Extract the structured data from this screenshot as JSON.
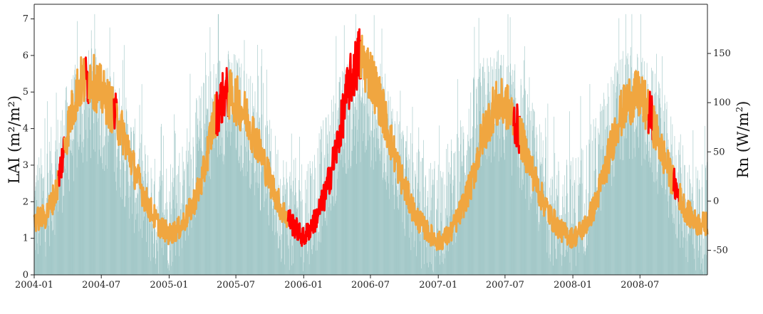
{
  "chart_data": {
    "type": "line",
    "title": "",
    "xlabel": "",
    "ylabel_left": "LAI (m²/m²)",
    "ylabel_right": {
      "main": "Rn (W/m",
      "sup": "2",
      "close": ")"
    },
    "x_range": [
      "2004-01-01",
      "2008-12-31"
    ],
    "x_ticks": [
      "2004-01",
      "2004-07",
      "2005-01",
      "2005-07",
      "2006-01",
      "2006-07",
      "2007-01",
      "2007-07",
      "2008-01",
      "2008-07"
    ],
    "y_left_range": [
      0,
      7.4
    ],
    "y_left_ticks": [
      "0",
      "1",
      "2",
      "3",
      "4",
      "5",
      "6",
      "7"
    ],
    "y_right_range": [
      -75,
      200
    ],
    "y_right_ticks": [
      "-50",
      "0",
      "50",
      "100",
      "150"
    ],
    "grid": false,
    "colors": {
      "lai_normal": "#f0a640",
      "lai_highlight": "#ff0000",
      "rn_bars": "#8fbcbc"
    },
    "series": [
      {
        "kind": "LAI",
        "axis": "left",
        "description": "daily LAI, monthly anchor values (start of month)",
        "x": [
          "2004-01",
          "2004-02",
          "2004-03",
          "2004-04",
          "2004-05",
          "2004-06",
          "2004-07",
          "2004-08",
          "2004-09",
          "2004-10",
          "2004-11",
          "2004-12",
          "2005-01",
          "2005-02",
          "2005-03",
          "2005-04",
          "2005-05",
          "2005-06",
          "2005-07",
          "2005-08",
          "2005-09",
          "2005-10",
          "2005-11",
          "2005-12",
          "2006-01",
          "2006-02",
          "2006-03",
          "2006-04",
          "2006-05",
          "2006-06",
          "2006-07",
          "2006-08",
          "2006-09",
          "2006-10",
          "2006-11",
          "2006-12",
          "2007-01",
          "2007-02",
          "2007-03",
          "2007-04",
          "2007-05",
          "2007-06",
          "2007-07",
          "2007-08",
          "2007-09",
          "2007-10",
          "2007-11",
          "2007-12",
          "2008-01",
          "2008-02",
          "2008-03",
          "2008-04",
          "2008-05",
          "2008-06",
          "2008-07",
          "2008-08",
          "2008-09",
          "2008-10",
          "2008-11",
          "2008-12"
        ],
        "y": [
          1.5,
          1.6,
          2.3,
          4.0,
          5.2,
          5.4,
          5.0,
          4.5,
          3.8,
          2.8,
          2.0,
          1.4,
          1.1,
          1.3,
          1.8,
          2.6,
          4.2,
          5.0,
          4.8,
          4.3,
          3.5,
          2.6,
          1.8,
          1.4,
          1.0,
          1.5,
          2.2,
          3.5,
          5.1,
          6.0,
          5.5,
          4.6,
          3.4,
          2.4,
          1.6,
          1.2,
          0.9,
          1.1,
          1.7,
          2.5,
          3.8,
          4.6,
          4.7,
          4.1,
          3.2,
          2.3,
          1.6,
          1.2,
          1.0,
          1.3,
          1.9,
          3.0,
          4.2,
          4.8,
          4.9,
          4.3,
          3.3,
          2.5,
          1.8,
          1.4
        ],
        "peak_max": 7.0,
        "min": 0.4
      },
      {
        "kind": "Rn",
        "axis": "right",
        "description": "daily net radiation bars, monthly mean level",
        "x": [
          "2004-01",
          "2004-02",
          "2004-03",
          "2004-04",
          "2004-05",
          "2004-06",
          "2004-07",
          "2004-08",
          "2004-09",
          "2004-10",
          "2004-11",
          "2004-12",
          "2005-01",
          "2005-02",
          "2005-03",
          "2005-04",
          "2005-05",
          "2005-06",
          "2005-07",
          "2005-08",
          "2005-09",
          "2005-10",
          "2005-11",
          "2005-12",
          "2006-01",
          "2006-02",
          "2006-03",
          "2006-04",
          "2006-05",
          "2006-06",
          "2006-07",
          "2006-08",
          "2006-09",
          "2006-10",
          "2006-11",
          "2006-12",
          "2007-01",
          "2007-02",
          "2007-03",
          "2007-04",
          "2007-05",
          "2007-06",
          "2007-07",
          "2007-08",
          "2007-09",
          "2007-10",
          "2007-11",
          "2007-12",
          "2008-01",
          "2008-02",
          "2008-03",
          "2008-04",
          "2008-05",
          "2008-06",
          "2008-07",
          "2008-08",
          "2008-09",
          "2008-10",
          "2008-11",
          "2008-12"
        ],
        "y": [
          -30,
          -15,
          10,
          45,
          70,
          80,
          75,
          60,
          35,
          5,
          -20,
          -35,
          -30,
          -15,
          10,
          45,
          70,
          80,
          75,
          60,
          35,
          5,
          -20,
          -35,
          -30,
          -15,
          10,
          45,
          70,
          80,
          75,
          60,
          35,
          5,
          -20,
          -35,
          -30,
          -15,
          10,
          45,
          70,
          80,
          75,
          60,
          35,
          5,
          -20,
          -35,
          -30,
          -15,
          10,
          45,
          70,
          80,
          75,
          60,
          35,
          5,
          -20,
          -35
        ],
        "max": 190,
        "baseline": -75
      }
    ],
    "highlight_periods": [
      [
        "2004-03-08",
        "2004-03-22"
      ],
      [
        "2004-05-20",
        "2004-05-28"
      ],
      [
        "2004-08-05",
        "2004-08-12"
      ],
      [
        "2005-05-10",
        "2005-06-10"
      ],
      [
        "2005-11-20",
        "2006-06-05"
      ],
      [
        "2007-07-25",
        "2007-08-10"
      ],
      [
        "2008-07-25",
        "2008-08-05"
      ],
      [
        "2008-10-01",
        "2008-10-15"
      ]
    ]
  }
}
